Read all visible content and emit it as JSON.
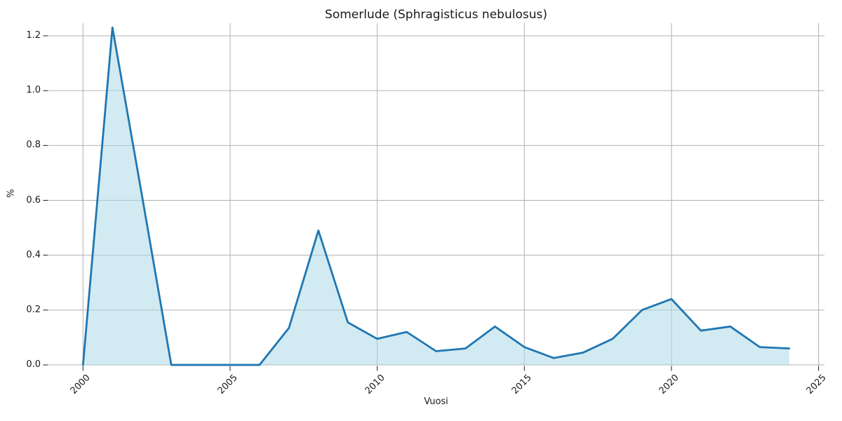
{
  "chart_data": {
    "type": "area",
    "title": "Somerlude (Sphragisticus nebulosus)",
    "xlabel": "Vuosi",
    "ylabel": "%",
    "x": [
      2000,
      2001,
      2002,
      2003,
      2004,
      2005,
      2006,
      2007,
      2008,
      2009,
      2010,
      2011,
      2012,
      2013,
      2014,
      2015,
      2016,
      2017,
      2018,
      2019,
      2020,
      2021,
      2022,
      2023,
      2024
    ],
    "values": [
      0.0,
      1.23,
      0.62,
      0.0,
      0.0,
      0.0,
      0.0,
      0.135,
      0.49,
      0.155,
      0.095,
      0.12,
      0.05,
      0.06,
      0.14,
      0.065,
      0.025,
      0.045,
      0.095,
      0.2,
      0.24,
      0.125,
      0.14,
      0.065,
      0.06
    ],
    "xticks": [
      2000,
      2005,
      2010,
      2015,
      2020,
      2025
    ],
    "yticks": [
      0.0,
      0.2,
      0.4,
      0.6,
      0.8,
      1.0,
      1.2
    ],
    "xlim": [
      1998.8,
      2025.2
    ],
    "ylim": [
      -0.005,
      1.246
    ],
    "grid": true,
    "legend": null,
    "colors": {
      "line": "#1f77b4",
      "fill": "rgba(173,216,230,0.55)",
      "grid": "#b0b0b0",
      "ticks": "#1a1a1a",
      "text": "#1a1a1a",
      "background": "#ffffff"
    }
  }
}
